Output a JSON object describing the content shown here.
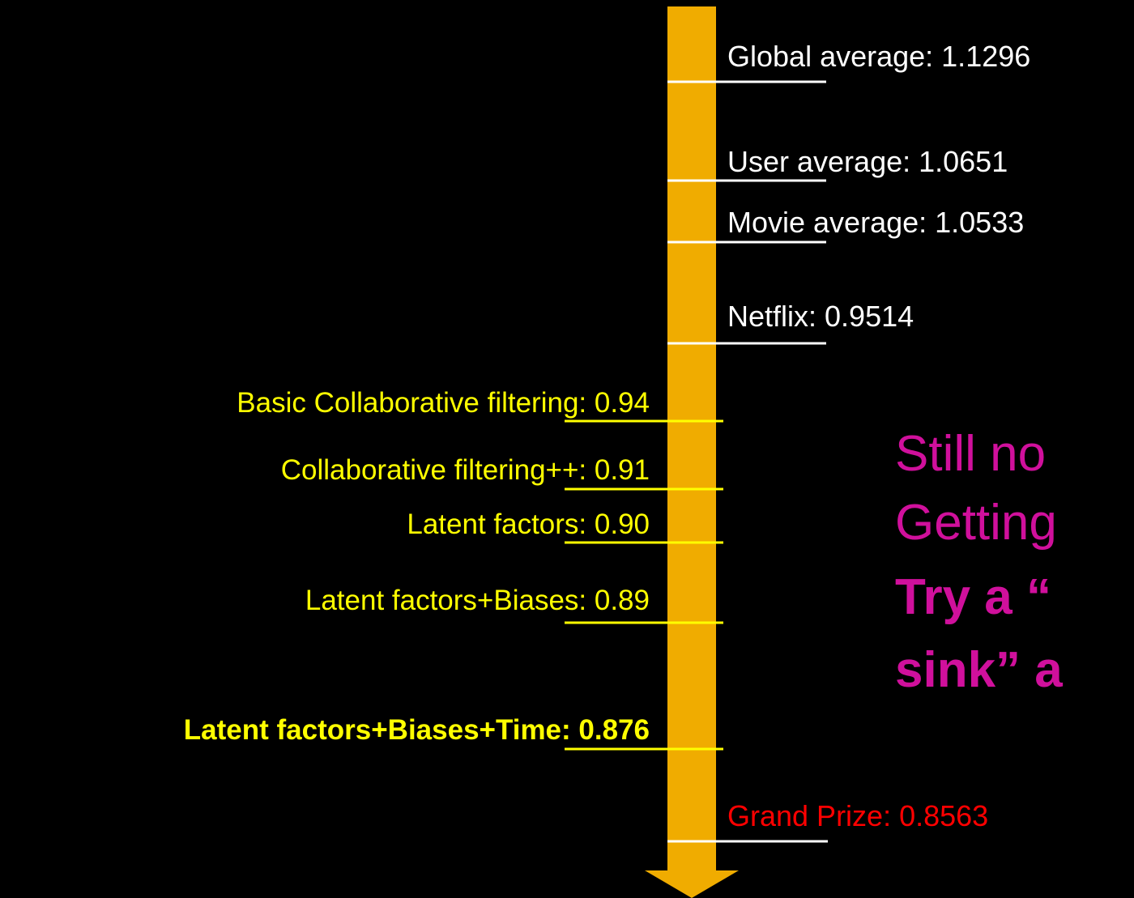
{
  "right_labels": [
    {
      "text": "Global average: 1.1296"
    },
    {
      "text": "User average: 1.0651"
    },
    {
      "text": "Movie average: 1.0533"
    },
    {
      "text": "Netflix: 0.9514"
    },
    {
      "text": "Grand Prize: 0.8563"
    }
  ],
  "left_labels": [
    {
      "text": "Basic Collaborative filtering: 0.94"
    },
    {
      "text": "Collaborative filtering++: 0.91"
    },
    {
      "text": "Latent factors: 0.90"
    },
    {
      "text": "Latent factors+Biases: 0.89"
    },
    {
      "text": "Latent factors+Biases+Time: 0.876"
    }
  ],
  "callout": [
    "Still no",
    "Getting",
    "Try a “",
    "sink” a"
  ]
}
